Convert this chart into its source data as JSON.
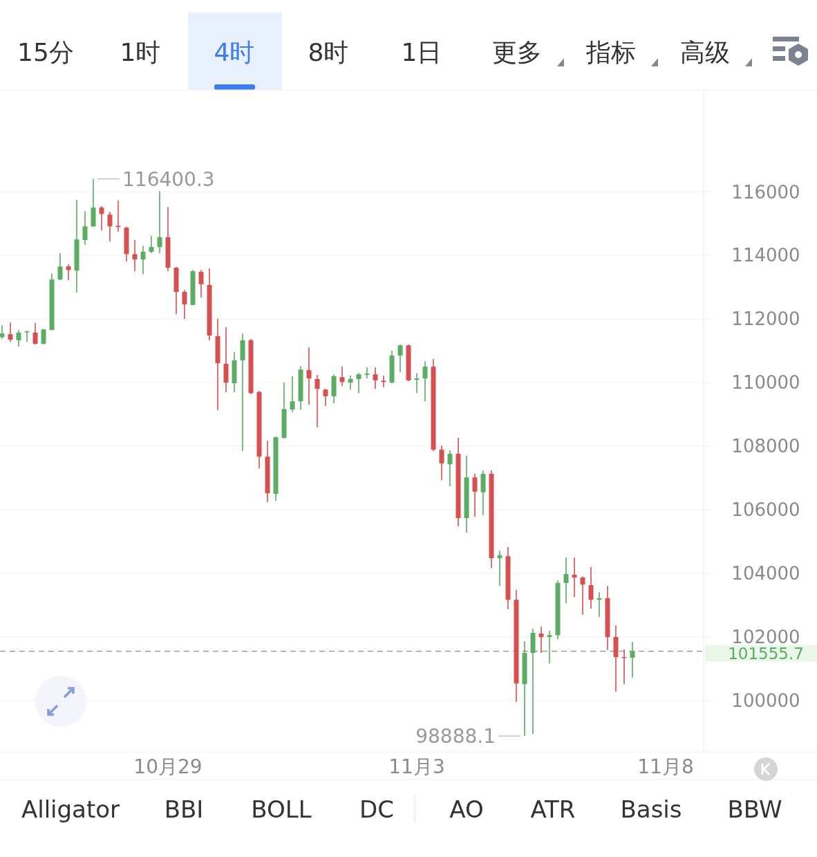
{
  "chart_data": {
    "type": "candlestick",
    "categories": [
      null,
      null,
      null,
      null,
      null,
      null,
      null,
      null,
      null,
      null,
      null,
      null,
      null,
      null,
      null,
      null,
      null,
      null,
      null,
      null,
      "10月29",
      null,
      null,
      null,
      null,
      null,
      null,
      null,
      null,
      null,
      null,
      null,
      null,
      null,
      null,
      null,
      null,
      null,
      null,
      null,
      null,
      null,
      null,
      null,
      null,
      null,
      null,
      null,
      null,
      null,
      "11月3",
      null,
      null,
      null,
      null,
      null,
      null,
      null,
      null,
      null,
      null,
      null,
      null,
      null,
      null,
      null,
      null,
      null,
      null,
      null,
      null,
      null,
      null,
      null,
      null,
      null,
      null,
      null,
      null,
      null,
      "11月8"
    ],
    "ohlc": [
      [
        111430,
        111800,
        111370,
        111540
      ],
      [
        111520,
        111890,
        111280,
        111350
      ],
      [
        111330,
        111650,
        111130,
        111570
      ],
      [
        111590,
        111630,
        111280,
        111610
      ],
      [
        111570,
        111870,
        111200,
        111220
      ],
      [
        111220,
        111680,
        111200,
        111670
      ],
      [
        111650,
        113430,
        111650,
        113240
      ],
      [
        113240,
        114070,
        113220,
        113650
      ],
      [
        113650,
        113720,
        113220,
        113540
      ],
      [
        113520,
        115740,
        112830,
        114500
      ],
      [
        114480,
        115390,
        114330,
        114910
      ],
      [
        114910,
        116400.3,
        114890,
        115500
      ],
      [
        115500,
        115540,
        114780,
        115300
      ],
      [
        115280,
        115370,
        114430,
        114910
      ],
      [
        114930,
        115720,
        114740,
        114890
      ],
      [
        114870,
        114900,
        113800,
        114040
      ],
      [
        114040,
        114480,
        113500,
        113870
      ],
      [
        113870,
        114300,
        113410,
        114110
      ],
      [
        114110,
        114610,
        114070,
        114260
      ],
      [
        114260,
        116020,
        114070,
        114570
      ],
      [
        114570,
        115520,
        113500,
        113610
      ],
      [
        113610,
        113640,
        112150,
        112850
      ],
      [
        112850,
        112910,
        112000,
        112460
      ],
      [
        112440,
        113540,
        112440,
        113500
      ],
      [
        113480,
        113540,
        112670,
        113090
      ],
      [
        113070,
        113590,
        111330,
        111480
      ],
      [
        111460,
        112000,
        109130,
        110610
      ],
      [
        110590,
        111740,
        109700,
        110000
      ],
      [
        109980,
        110960,
        109700,
        110700
      ],
      [
        110700,
        111540,
        107850,
        111330
      ],
      [
        111330,
        111370,
        109630,
        109670
      ],
      [
        109700,
        109740,
        107300,
        107670
      ],
      [
        107670,
        108170,
        106240,
        106520
      ],
      [
        106500,
        108300,
        106280,
        108280
      ],
      [
        108260,
        110000,
        108240,
        109170
      ],
      [
        109150,
        110200,
        109070,
        109410
      ],
      [
        109410,
        110520,
        109150,
        110410
      ],
      [
        110390,
        111110,
        109300,
        110130
      ],
      [
        110110,
        110240,
        108590,
        109800
      ],
      [
        109780,
        109800,
        109260,
        109570
      ],
      [
        109570,
        110260,
        109350,
        110200
      ],
      [
        110170,
        110500,
        109890,
        110020
      ],
      [
        110000,
        110220,
        109780,
        110110
      ],
      [
        110110,
        110300,
        109670,
        110260
      ],
      [
        110240,
        110480,
        110130,
        110280
      ],
      [
        110260,
        110480,
        109800,
        110070
      ],
      [
        110060,
        110220,
        109850,
        110020
      ],
      [
        110000,
        111000,
        109980,
        110850
      ],
      [
        110850,
        111200,
        110330,
        111170
      ],
      [
        111170,
        111200,
        110040,
        110070
      ],
      [
        110090,
        110300,
        109670,
        110130
      ],
      [
        110130,
        110670,
        109410,
        110500
      ],
      [
        110500,
        110740,
        107850,
        107890
      ],
      [
        107890,
        108020,
        106930,
        107460
      ],
      [
        107430,
        107870,
        106740,
        107760
      ],
      [
        107760,
        108260,
        105480,
        105740
      ],
      [
        105740,
        107700,
        105280,
        107020
      ],
      [
        107020,
        107130,
        105780,
        106570
      ],
      [
        106550,
        107240,
        105830,
        107130
      ],
      [
        107130,
        107240,
        104170,
        104480
      ],
      [
        104480,
        104720,
        103610,
        104570
      ],
      [
        104540,
        104830,
        102870,
        103170
      ],
      [
        103170,
        103480,
        99960,
        100540
      ],
      [
        100520,
        101870,
        98888.1,
        101500
      ],
      [
        101500,
        102260,
        98950,
        102130
      ],
      [
        102110,
        102330,
        101500,
        102000
      ],
      [
        102000,
        102200,
        101170,
        102060
      ],
      [
        102060,
        103780,
        101930,
        103700
      ],
      [
        103700,
        104500,
        103060,
        103980
      ],
      [
        103960,
        104500,
        103260,
        103870
      ],
      [
        103870,
        103910,
        102700,
        103650
      ],
      [
        103630,
        104200,
        102890,
        103170
      ],
      [
        103170,
        103410,
        102630,
        103220
      ],
      [
        103220,
        103610,
        101590,
        102000
      ],
      [
        102000,
        102370,
        100280,
        101370
      ],
      [
        101370,
        101610,
        100520,
        101350
      ],
      [
        101350,
        101850,
        100720,
        101555.7
      ],
      null,
      null,
      null,
      null
    ],
    "colors": [
      "#5aad62",
      "#d65050",
      "#5aad62",
      "#5aad62",
      "#d65050",
      "#5aad62",
      "#5aad62",
      "#5aad62",
      "#d65050",
      "#5aad62",
      "#5aad62",
      "#5aad62",
      "#d65050",
      "#d65050",
      "#d65050",
      "#d65050",
      "#d65050",
      "#5aad62",
      "#5aad62",
      "#5aad62",
      "#d65050",
      "#d65050",
      "#d65050",
      "#5aad62",
      "#d65050",
      "#d65050",
      "#d65050",
      "#d65050",
      "#5aad62",
      "#5aad62",
      "#d65050",
      "#d65050",
      "#d65050",
      "#5aad62",
      "#5aad62",
      "#5aad62",
      "#5aad62",
      "#d65050",
      "#d65050",
      "#d65050",
      "#5aad62",
      "#d65050",
      "#5aad62",
      "#5aad62",
      "#5aad62",
      "#d65050",
      "#d65050",
      "#5aad62",
      "#5aad62",
      "#d65050",
      "#5aad62",
      "#5aad62",
      "#d65050",
      "#d65050",
      "#5aad62",
      "#d65050",
      "#5aad62",
      "#d65050",
      "#5aad62",
      "#d65050",
      "#5aad62",
      "#d65050",
      "#d65050",
      "#5aad62",
      "#5aad62",
      "#d65050",
      "#5aad62",
      "#5aad62",
      "#5aad62",
      "#d65050",
      "#d65050",
      "#d65050",
      "#5aad62",
      "#d65050",
      "#d65050",
      "#d65050",
      "#5aad62",
      null,
      null,
      null,
      null
    ],
    "ylim": [
      98390,
      119200
    ],
    "yticks": [
      100000,
      102000,
      104000,
      106000,
      108000,
      110000,
      112000,
      114000,
      116000
    ],
    "grid": "y",
    "ref_lines": [
      {
        "axis": "y",
        "value": 101555.7,
        "label": "101555.7",
        "color": "#999999",
        "line_style": "dashed"
      }
    ],
    "annotations": [
      "116400.3",
      "98888.1",
      "15分",
      "1时",
      "4时",
      "8时",
      "1日",
      "更多",
      "指标",
      "高级",
      "Alligator",
      "BBI",
      "BOLL",
      "DC",
      "AO",
      "ATR",
      "Basis",
      "BBW"
    ]
  }
}
